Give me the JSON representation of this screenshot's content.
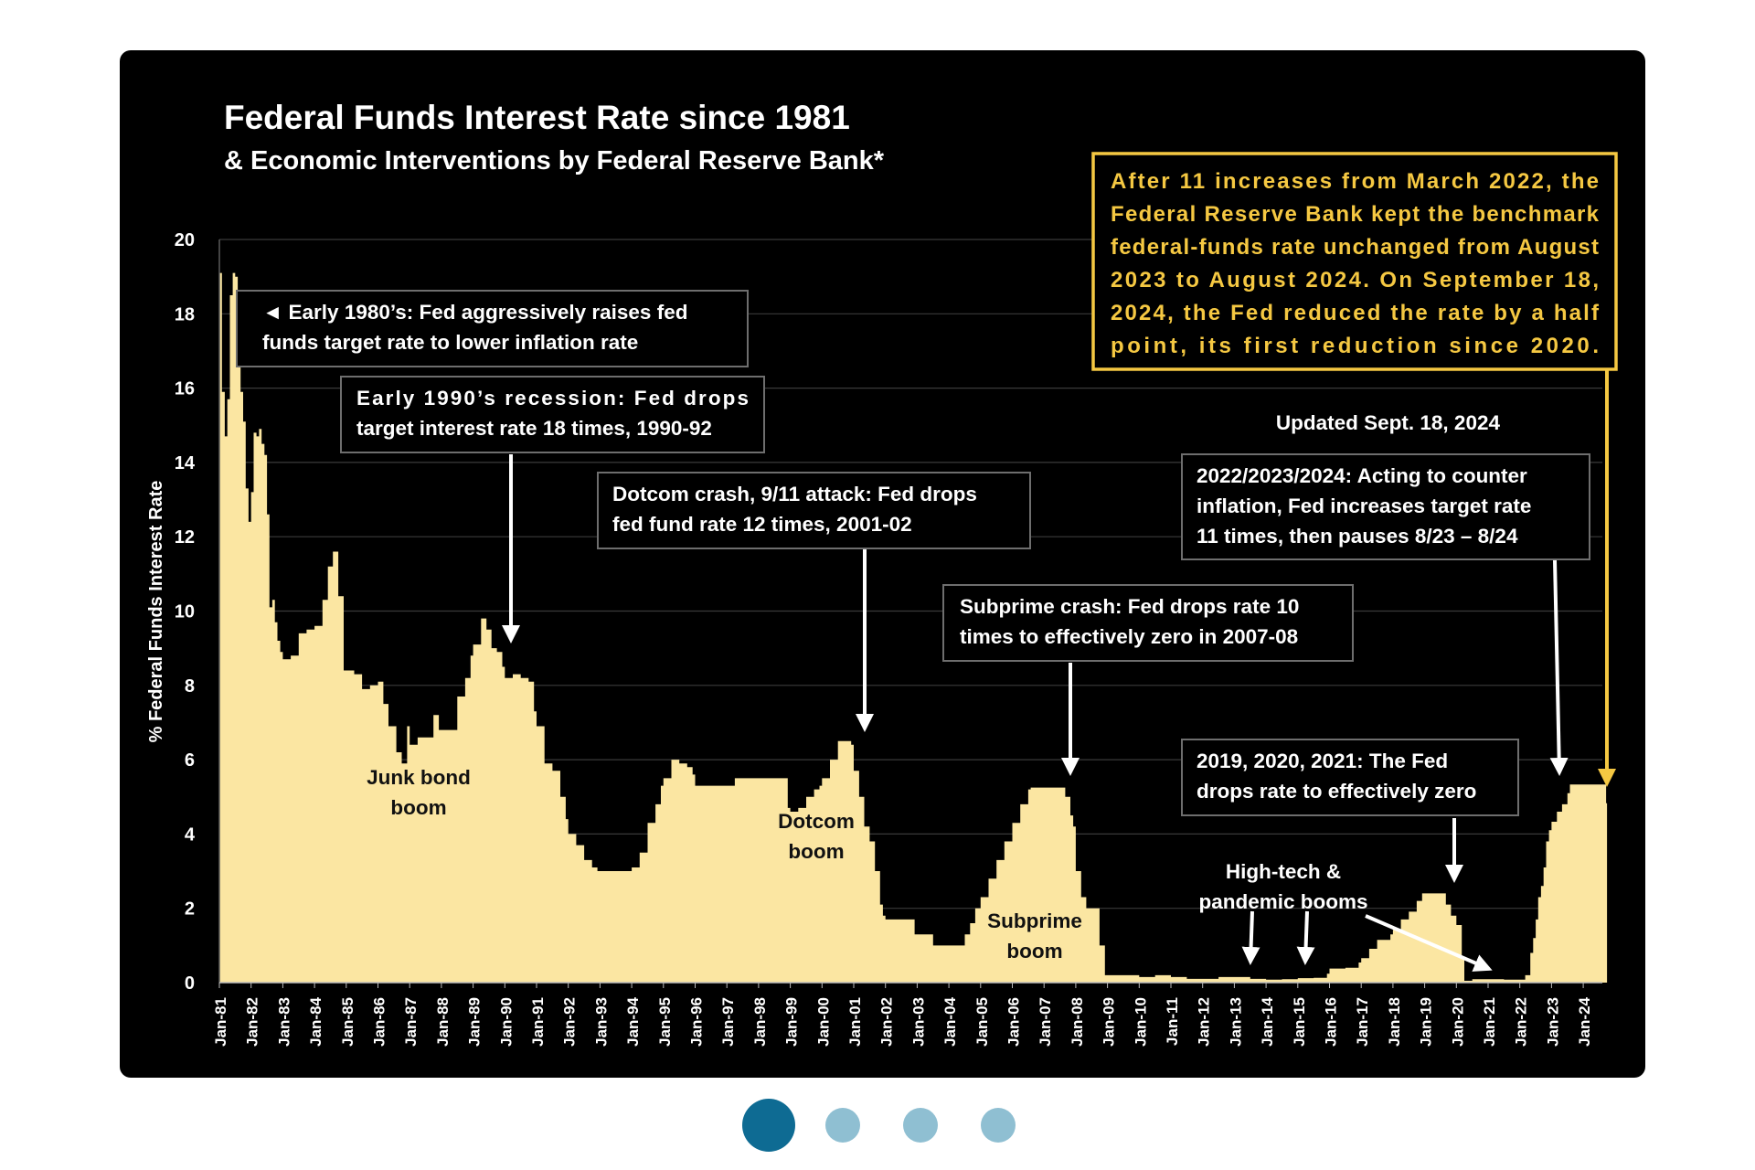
{
  "chart_data": {
    "type": "area",
    "title": "Federal Funds Interest Rate since 1981",
    "subtitle": "& Economic Interventions by Federal Reserve Bank*",
    "xlabel": "",
    "ylabel": "% Federal Funds Interest Rate",
    "ylim": [
      0,
      20
    ],
    "yticks": [
      0,
      2,
      4,
      6,
      8,
      10,
      12,
      14,
      16,
      18,
      20
    ],
    "xlim": [
      1981.0,
      2024.75
    ],
    "grid": "horizontal",
    "xtick_labels": [
      "Jan-81",
      "Jan-82",
      "Jan-83",
      "Jan-84",
      "Jan-85",
      "Jan-86",
      "Jan-87",
      "Jan-88",
      "Jan-89",
      "Jan-90",
      "Jan-91",
      "Jan-92",
      "Jan-93",
      "Jan-94",
      "Jan-95",
      "Jan-96",
      "Jan-97",
      "Jan-98",
      "Jan-99",
      "Jan-00",
      "Jan-01",
      "Jan-02",
      "Jan-03",
      "Jan-04",
      "Jan-05",
      "Jan-06",
      "Jan-07",
      "Jan-08",
      "Jan-09",
      "Jan-10",
      "Jan-11",
      "Jan-12",
      "Jan-13",
      "Jan-14",
      "Jan-15",
      "Jan-16",
      "Jan-17",
      "Jan-18",
      "Jan-19",
      "Jan-20",
      "Jan-21",
      "Jan-22",
      "Jan-23",
      "Jan-24"
    ],
    "series": [
      {
        "name": "Federal Funds Rate",
        "color": "#fbe6a2",
        "points": [
          [
            1981.0,
            19.1
          ],
          [
            1981.08,
            15.9
          ],
          [
            1981.17,
            14.7
          ],
          [
            1981.25,
            15.7
          ],
          [
            1981.33,
            18.5
          ],
          [
            1981.42,
            19.1
          ],
          [
            1981.5,
            19.0
          ],
          [
            1981.58,
            17.8
          ],
          [
            1981.67,
            15.9
          ],
          [
            1981.75,
            15.1
          ],
          [
            1981.83,
            13.3
          ],
          [
            1981.92,
            12.4
          ],
          [
            1982.0,
            13.2
          ],
          [
            1982.08,
            14.8
          ],
          [
            1982.17,
            14.7
          ],
          [
            1982.25,
            14.9
          ],
          [
            1982.33,
            14.5
          ],
          [
            1982.42,
            14.2
          ],
          [
            1982.5,
            12.6
          ],
          [
            1982.58,
            10.1
          ],
          [
            1982.67,
            10.3
          ],
          [
            1982.75,
            9.7
          ],
          [
            1982.83,
            9.2
          ],
          [
            1982.92,
            8.9
          ],
          [
            1983.0,
            8.7
          ],
          [
            1983.25,
            8.8
          ],
          [
            1983.5,
            9.4
          ],
          [
            1983.75,
            9.5
          ],
          [
            1984.0,
            9.6
          ],
          [
            1984.25,
            10.3
          ],
          [
            1984.42,
            11.2
          ],
          [
            1984.58,
            11.6
          ],
          [
            1984.75,
            10.4
          ],
          [
            1984.92,
            8.4
          ],
          [
            1985.0,
            8.4
          ],
          [
            1985.25,
            8.3
          ],
          [
            1985.5,
            7.9
          ],
          [
            1985.75,
            8.0
          ],
          [
            1986.0,
            8.1
          ],
          [
            1986.17,
            7.5
          ],
          [
            1986.33,
            6.9
          ],
          [
            1986.58,
            6.2
          ],
          [
            1986.75,
            5.9
          ],
          [
            1986.92,
            6.9
          ],
          [
            1987.0,
            6.4
          ],
          [
            1987.25,
            6.6
          ],
          [
            1987.5,
            6.6
          ],
          [
            1987.75,
            7.2
          ],
          [
            1987.92,
            6.8
          ],
          [
            1988.0,
            6.8
          ],
          [
            1988.25,
            6.8
          ],
          [
            1988.5,
            7.7
          ],
          [
            1988.75,
            8.2
          ],
          [
            1988.92,
            8.8
          ],
          [
            1989.0,
            9.1
          ],
          [
            1989.25,
            9.8
          ],
          [
            1989.42,
            9.5
          ],
          [
            1989.58,
            9.0
          ],
          [
            1989.75,
            8.9
          ],
          [
            1989.92,
            8.5
          ],
          [
            1990.0,
            8.2
          ],
          [
            1990.25,
            8.3
          ],
          [
            1990.5,
            8.2
          ],
          [
            1990.75,
            8.1
          ],
          [
            1990.92,
            7.3
          ],
          [
            1991.0,
            6.9
          ],
          [
            1991.25,
            5.9
          ],
          [
            1991.5,
            5.7
          ],
          [
            1991.75,
            5.0
          ],
          [
            1991.92,
            4.4
          ],
          [
            1992.0,
            4.0
          ],
          [
            1992.25,
            3.7
          ],
          [
            1992.5,
            3.3
          ],
          [
            1992.75,
            3.1
          ],
          [
            1992.92,
            3.0
          ],
          [
            1993.0,
            3.0
          ],
          [
            1993.5,
            3.0
          ],
          [
            1993.92,
            3.0
          ],
          [
            1994.0,
            3.1
          ],
          [
            1994.25,
            3.5
          ],
          [
            1994.5,
            4.3
          ],
          [
            1994.75,
            4.8
          ],
          [
            1994.92,
            5.3
          ],
          [
            1995.0,
            5.5
          ],
          [
            1995.25,
            6.0
          ],
          [
            1995.5,
            5.9
          ],
          [
            1995.75,
            5.8
          ],
          [
            1995.92,
            5.6
          ],
          [
            1996.0,
            5.3
          ],
          [
            1996.5,
            5.3
          ],
          [
            1996.92,
            5.3
          ],
          [
            1997.0,
            5.3
          ],
          [
            1997.25,
            5.5
          ],
          [
            1997.5,
            5.5
          ],
          [
            1997.92,
            5.5
          ],
          [
            1998.0,
            5.5
          ],
          [
            1998.5,
            5.5
          ],
          [
            1998.75,
            5.5
          ],
          [
            1998.92,
            4.7
          ],
          [
            1999.0,
            4.6
          ],
          [
            1999.25,
            4.7
          ],
          [
            1999.5,
            5.0
          ],
          [
            1999.75,
            5.2
          ],
          [
            1999.92,
            5.3
          ],
          [
            2000.0,
            5.5
          ],
          [
            2000.25,
            6.0
          ],
          [
            2000.5,
            6.5
          ],
          [
            2000.75,
            6.5
          ],
          [
            2000.92,
            6.4
          ],
          [
            2001.0,
            5.7
          ],
          [
            2001.17,
            5.0
          ],
          [
            2001.33,
            4.2
          ],
          [
            2001.5,
            3.8
          ],
          [
            2001.67,
            3.0
          ],
          [
            2001.83,
            2.1
          ],
          [
            2001.92,
            1.8
          ],
          [
            2002.0,
            1.7
          ],
          [
            2002.5,
            1.7
          ],
          [
            2002.83,
            1.7
          ],
          [
            2002.92,
            1.3
          ],
          [
            2003.0,
            1.3
          ],
          [
            2003.42,
            1.3
          ],
          [
            2003.5,
            1.0
          ],
          [
            2004.0,
            1.0
          ],
          [
            2004.33,
            1.0
          ],
          [
            2004.5,
            1.3
          ],
          [
            2004.67,
            1.6
          ],
          [
            2004.83,
            2.0
          ],
          [
            2005.0,
            2.3
          ],
          [
            2005.25,
            2.8
          ],
          [
            2005.5,
            3.3
          ],
          [
            2005.75,
            3.8
          ],
          [
            2006.0,
            4.3
          ],
          [
            2006.25,
            4.8
          ],
          [
            2006.5,
            5.2
          ],
          [
            2006.58,
            5.25
          ],
          [
            2007.0,
            5.25
          ],
          [
            2007.5,
            5.25
          ],
          [
            2007.67,
            5.0
          ],
          [
            2007.83,
            4.5
          ],
          [
            2007.92,
            4.2
          ],
          [
            2008.0,
            3.0
          ],
          [
            2008.17,
            2.3
          ],
          [
            2008.33,
            2.0
          ],
          [
            2008.5,
            2.0
          ],
          [
            2008.75,
            1.0
          ],
          [
            2008.92,
            0.2
          ],
          [
            2009.0,
            0.2
          ],
          [
            2009.5,
            0.2
          ],
          [
            2010.0,
            0.15
          ],
          [
            2010.5,
            0.2
          ],
          [
            2011.0,
            0.15
          ],
          [
            2011.5,
            0.1
          ],
          [
            2012.0,
            0.1
          ],
          [
            2012.5,
            0.15
          ],
          [
            2013.0,
            0.15
          ],
          [
            2013.5,
            0.1
          ],
          [
            2014.0,
            0.08
          ],
          [
            2014.5,
            0.09
          ],
          [
            2015.0,
            0.12
          ],
          [
            2015.5,
            0.13
          ],
          [
            2015.92,
            0.24
          ],
          [
            2016.0,
            0.38
          ],
          [
            2016.5,
            0.4
          ],
          [
            2016.92,
            0.54
          ],
          [
            2017.0,
            0.66
          ],
          [
            2017.25,
            0.91
          ],
          [
            2017.5,
            1.15
          ],
          [
            2017.92,
            1.3
          ],
          [
            2018.0,
            1.42
          ],
          [
            2018.25,
            1.7
          ],
          [
            2018.5,
            1.91
          ],
          [
            2018.75,
            2.2
          ],
          [
            2018.92,
            2.4
          ],
          [
            2019.0,
            2.4
          ],
          [
            2019.5,
            2.4
          ],
          [
            2019.67,
            2.1
          ],
          [
            2019.83,
            1.8
          ],
          [
            2020.0,
            1.55
          ],
          [
            2020.17,
            0.65
          ],
          [
            2020.25,
            0.05
          ],
          [
            2020.5,
            0.09
          ],
          [
            2021.0,
            0.09
          ],
          [
            2021.5,
            0.08
          ],
          [
            2022.0,
            0.08
          ],
          [
            2022.17,
            0.2
          ],
          [
            2022.33,
            0.8
          ],
          [
            2022.42,
            1.2
          ],
          [
            2022.5,
            1.7
          ],
          [
            2022.58,
            2.3
          ],
          [
            2022.67,
            2.6
          ],
          [
            2022.75,
            3.1
          ],
          [
            2022.83,
            3.8
          ],
          [
            2022.92,
            4.1
          ],
          [
            2023.0,
            4.33
          ],
          [
            2023.17,
            4.6
          ],
          [
            2023.33,
            4.8
          ],
          [
            2023.5,
            5.1
          ],
          [
            2023.58,
            5.33
          ],
          [
            2024.0,
            5.33
          ],
          [
            2024.5,
            5.33
          ],
          [
            2024.67,
            5.33
          ],
          [
            2024.72,
            4.83
          ],
          [
            2024.75,
            4.83
          ]
        ]
      }
    ],
    "boom_labels": [
      {
        "id": "junk-bond",
        "text": [
          "Junk bond",
          "boom"
        ]
      },
      {
        "id": "dotcom",
        "text": [
          "Dotcom",
          "boom"
        ]
      },
      {
        "id": "subprime",
        "text": [
          "Subprime",
          "boom"
        ]
      },
      {
        "id": "hightech",
        "text": [
          "High-tech &",
          "pandemic booms"
        ]
      }
    ],
    "annotations": [
      {
        "id": "early-1980s",
        "text": [
          "◄ Early 1980’s: Fed aggressively raises fed",
          "funds target rate to lower inflation rate"
        ]
      },
      {
        "id": "early-1990s",
        "text": [
          "Early 1990’s recession: Fed drops",
          "target interest rate 18 times, 1990-92"
        ]
      },
      {
        "id": "dotcom-crash",
        "text": [
          "Dotcom crash, 9/11 attack: Fed drops",
          "fed fund rate 12 times, 2001-02"
        ]
      },
      {
        "id": "subprime-crash",
        "text": [
          "Subprime crash: Fed drops rate 10",
          "times to effectively zero in 2007-08"
        ]
      },
      {
        "id": "acting-2022",
        "text": [
          "2022/2023/2024: Acting to counter",
          "inflation, Fed increases target rate",
          "11 times, then pauses 8/23 – 8/24"
        ]
      },
      {
        "id": "zero-2019",
        "text": [
          "2019, 2020, 2021: The Fed",
          "drops rate to effectively zero"
        ]
      }
    ],
    "callout": {
      "color": "#f5c842",
      "text": [
        "After 11 increases from March 2022, the",
        "Federal Reserve Bank kept the benchmark",
        "federal-funds rate unchanged from August",
        "2023 to August 2024. On September 18,",
        "2024, the Fed reduced the rate by a half",
        "point, its first reduction since 2020."
      ]
    },
    "updated": "Updated Sept. 18, 2024"
  },
  "carousel": {
    "total": 4,
    "active_index": 0,
    "colors": {
      "active": "#0e6b93",
      "inactive": "#8fbfd2"
    }
  },
  "colors": {
    "background": "#000000",
    "fill": "#fbe6a2",
    "text": "#ffffff",
    "label": "#111111",
    "callout": "#f5c842"
  }
}
